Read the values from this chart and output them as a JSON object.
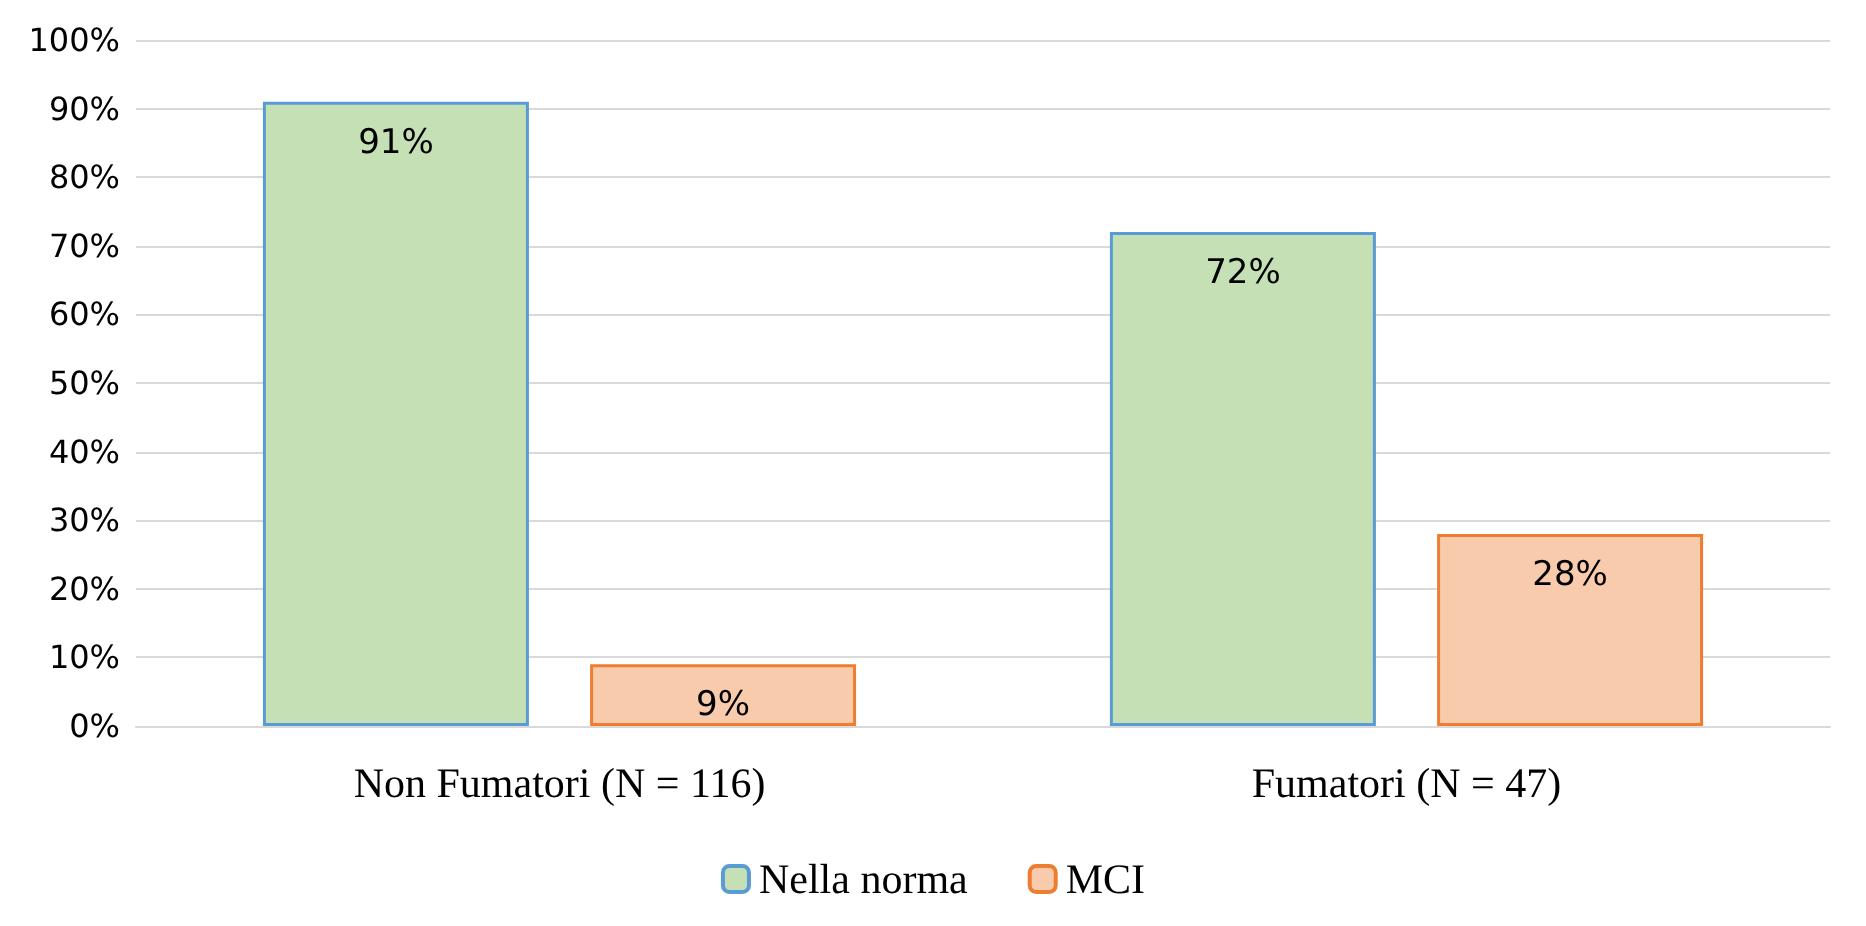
{
  "chart_data": {
    "type": "bar",
    "categories": [
      "Non Fumatori (N = 116)",
      "Fumatori (N = 47)"
    ],
    "series": [
      {
        "name": "Nella norma",
        "color": "#c5e0b4",
        "values": [
          91,
          72
        ],
        "value_labels": [
          "91%",
          "72%"
        ]
      },
      {
        "name": "MCI",
        "color": "#f8cbad",
        "values": [
          9,
          28
        ],
        "value_labels": [
          "9%",
          "28%"
        ]
      }
    ],
    "ylim": [
      0,
      100
    ],
    "yticks": [
      {
        "value": 0,
        "label": "0%"
      },
      {
        "value": 10,
        "label": "10%"
      },
      {
        "value": 20,
        "label": "20%"
      },
      {
        "value": 30,
        "label": "30%"
      },
      {
        "value": 40,
        "label": "40%"
      },
      {
        "value": 50,
        "label": "50%"
      },
      {
        "value": 60,
        "label": "60%"
      },
      {
        "value": 70,
        "label": "70%"
      },
      {
        "value": 80,
        "label": "80%"
      },
      {
        "value": 90,
        "label": "90%"
      },
      {
        "value": 100,
        "label": "100%"
      }
    ],
    "grid": "y",
    "legend": "bottom"
  }
}
